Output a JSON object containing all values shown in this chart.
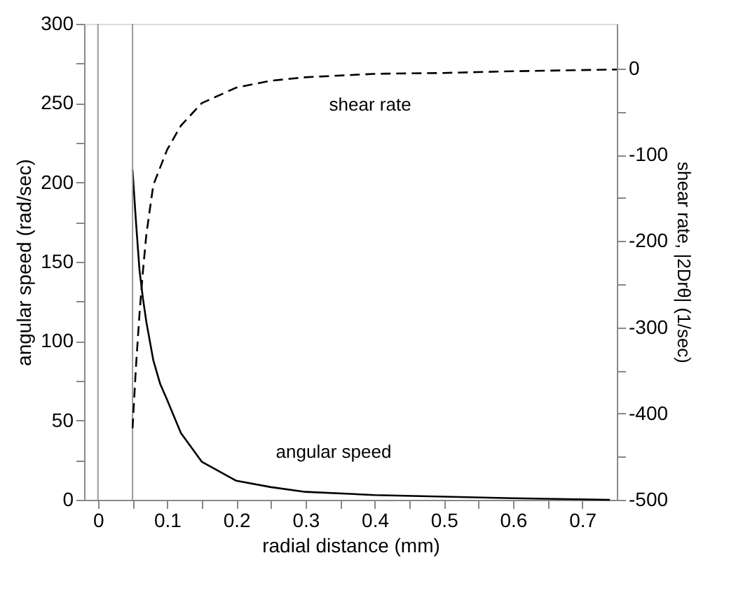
{
  "chart_data": {
    "type": "line",
    "xlabel": "radial distance (mm)",
    "ylabel": "angular speed (rad/sec)",
    "y2label": "shear rate, |2Drθ| (1/sec)",
    "xlim": [
      -0.02,
      0.75
    ],
    "xticks": [
      0,
      {
        "value": 0.05,
        "label": null
      },
      0.1,
      {
        "value": 0.15,
        "label": null
      },
      0.2,
      {
        "value": 0.25,
        "label": null
      },
      0.3,
      {
        "value": 0.35,
        "label": null
      },
      0.4,
      {
        "value": 0.45,
        "label": null
      },
      0.5,
      {
        "value": 0.55,
        "label": null
      },
      0.6,
      {
        "value": 0.65,
        "label": null
      },
      0.7
    ],
    "ylim": [
      0,
      300
    ],
    "yticks": [
      0,
      {
        "value": 25,
        "label": null
      },
      50,
      {
        "value": 75,
        "label": null
      },
      100,
      {
        "value": 125,
        "label": null
      },
      150,
      {
        "value": 175,
        "label": null
      },
      200,
      {
        "value": 225,
        "label": null
      },
      250,
      {
        "value": 275,
        "label": null
      },
      300
    ],
    "y2lim": [
      -500,
      52
    ],
    "y2ticks": [
      -500,
      {
        "value": -450,
        "label": null
      },
      -400,
      {
        "value": -350,
        "label": null
      },
      -300,
      {
        "value": -250,
        "label": null
      },
      -200,
      {
        "value": -150,
        "label": null
      },
      -100,
      {
        "value": -50,
        "label": null
      },
      0
    ],
    "grid": false,
    "marker": "none",
    "series": [
      {
        "color": "#000000",
        "line_style": "solid",
        "x": [
          0.05,
          0.055,
          0.06,
          0.065,
          0.07,
          0.08,
          0.09,
          0.1,
          0.12,
          0.15,
          0.2,
          0.25,
          0.3,
          0.4,
          0.5,
          0.6,
          0.74
        ],
        "values": [
          208,
          175,
          145,
          127,
          112,
          88,
          73,
          63,
          42,
          24,
          12,
          8,
          5,
          3,
          2,
          1,
          0
        ]
      },
      {
        "color": "#000000",
        "line_style": "dashed",
        "axis": "y2",
        "x": [
          0.05,
          0.055,
          0.06,
          0.065,
          0.07,
          0.08,
          0.1,
          0.12,
          0.15,
          0.2,
          0.25,
          0.3,
          0.4,
          0.5,
          0.6,
          0.75
        ],
        "values": [
          -417,
          -345,
          -285,
          -235,
          -192,
          -135,
          -94,
          -66,
          -40,
          -22,
          -14,
          -10,
          -6,
          -5,
          -3,
          -1
        ]
      }
    ],
    "ref_lines": [
      {
        "axis": "x",
        "value": 0,
        "color": "#999999"
      },
      {
        "axis": "x",
        "value": 0.05,
        "color": "#999999"
      }
    ],
    "annotations": [
      "shear rate",
      "angular speed"
    ]
  }
}
